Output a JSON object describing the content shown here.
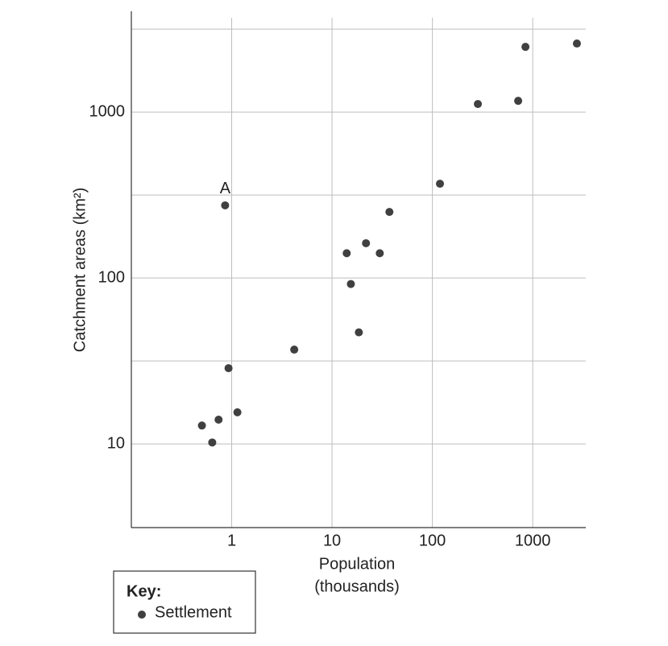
{
  "chart_data": {
    "type": "scatter",
    "xlabel": [
      "Population",
      "(thousands)"
    ],
    "ylabel": "Catchment areas (km²)",
    "xscale": "log",
    "yscale": "log",
    "xlim": [
      0.1,
      3380
    ],
    "ylim": [
      3.13,
      4050
    ],
    "xticks": [
      1,
      10,
      100,
      1000
    ],
    "yticks": [
      10,
      100,
      1000
    ],
    "minor_yticks": [
      31.6,
      316,
      3162
    ],
    "grid": true,
    "legend_title": "Key:",
    "legend_position": "bottom-left",
    "series": [
      {
        "name": "Settlement",
        "color": "#404040",
        "x": [
          0.505,
          0.64,
          0.74,
          0.93,
          1.14,
          0.86,
          4.2,
          14.0,
          15.4,
          18.5,
          21.8,
          29.9,
          37.3,
          119,
          284,
          716,
          846,
          2755
        ],
        "values": [
          12.9,
          10.2,
          14.0,
          28.6,
          15.5,
          274,
          37,
          141,
          92,
          47,
          162,
          141,
          250,
          370,
          1118,
          1169,
          2472,
          2588
        ]
      }
    ],
    "annotations": [
      {
        "text": "A",
        "x": 0.86,
        "y": 274
      }
    ]
  }
}
